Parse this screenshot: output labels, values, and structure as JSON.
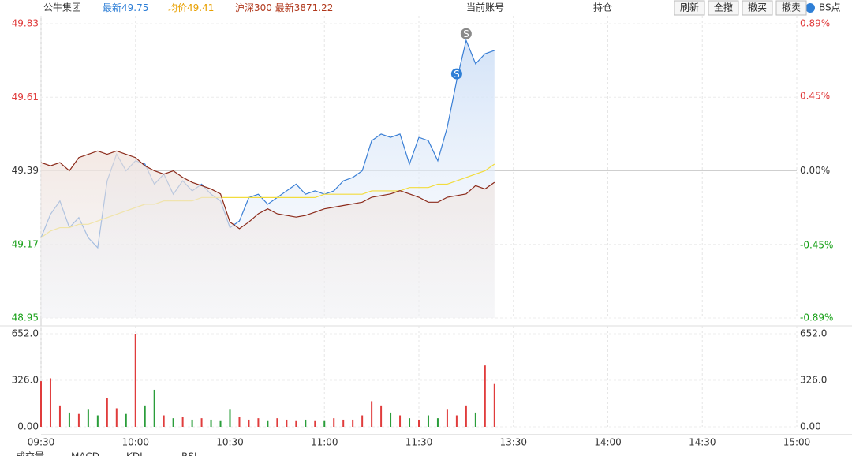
{
  "header": {
    "stock": "公牛集团",
    "last": {
      "label": "最新",
      "value": 49.75
    },
    "avg": {
      "label": "均价",
      "value": 49.41
    },
    "index": {
      "name": "沪深300",
      "label": "最新",
      "value": 3871.22
    },
    "account": "当前账号",
    "position": "持仓",
    "buttons": [
      "刷新",
      "全撤",
      "撤买",
      "撤卖"
    ],
    "bs_toggle": "BS点"
  },
  "tabs": [
    "成交量",
    "MACD",
    "KDJ",
    "RSI"
  ],
  "chart_data": [
    {
      "type": "line",
      "x": [
        0,
        3,
        6,
        9,
        12,
        15,
        18,
        21,
        24,
        27,
        30,
        33,
        36,
        39,
        42,
        45,
        48,
        51,
        54,
        57,
        60,
        63,
        66,
        69,
        72,
        75,
        78,
        81,
        84,
        87,
        90,
        93,
        96,
        99,
        102,
        105,
        108,
        111,
        114,
        117,
        120,
        123,
        126,
        129,
        132,
        135,
        138,
        141,
        144
      ],
      "xlim": [
        0,
        240
      ],
      "xticks": [
        {
          "value": 0,
          "label": "09:30"
        },
        {
          "value": 30,
          "label": "10:00"
        },
        {
          "value": 60,
          "label": "10:30"
        },
        {
          "value": 90,
          "label": "11:00"
        },
        {
          "value": 120,
          "label": "11:30"
        },
        {
          "value": 150,
          "label": "13:30"
        },
        {
          "value": 180,
          "label": "14:00"
        },
        {
          "value": 210,
          "label": "14:30"
        },
        {
          "value": 240,
          "label": "15:00"
        }
      ],
      "ylim": [
        48.95,
        49.83
      ],
      "yticks": [
        49.83,
        49.61,
        49.39,
        49.17,
        48.95
      ],
      "y2lim": [
        -0.89,
        0.89
      ],
      "y2ticks": [
        {
          "value": 0.89,
          "label": "0.89%"
        },
        {
          "value": 0.45,
          "label": "0.45%"
        },
        {
          "value": 0,
          "label": "0.00%"
        },
        {
          "value": -0.45,
          "label": "-0.45%"
        },
        {
          "value": -0.89,
          "label": "-0.89%"
        }
      ],
      "grid": true,
      "series": [
        {
          "color": "#3a7fd5",
          "values": [
            49.19,
            49.26,
            49.3,
            49.22,
            49.25,
            49.19,
            49.16,
            49.36,
            49.44,
            49.39,
            49.42,
            49.41,
            49.35,
            49.38,
            49.32,
            49.36,
            49.33,
            49.35,
            49.32,
            49.3,
            49.22,
            49.24,
            49.31,
            49.32,
            49.29,
            49.31,
            49.33,
            49.35,
            49.32,
            49.33,
            49.32,
            49.33,
            49.36,
            49.37,
            49.39,
            49.48,
            49.5,
            49.49,
            49.5,
            49.41,
            49.49,
            49.48,
            49.42,
            49.52,
            49.66,
            49.78,
            49.71,
            49.74,
            49.75
          ]
        },
        {
          "color": "#f2dc3c",
          "values": [
            49.19,
            49.21,
            49.22,
            49.22,
            49.23,
            49.23,
            49.24,
            49.25,
            49.26,
            49.27,
            49.28,
            49.29,
            49.29,
            49.3,
            49.3,
            49.3,
            49.3,
            49.31,
            49.31,
            49.31,
            49.31,
            49.31,
            49.31,
            49.31,
            49.31,
            49.31,
            49.31,
            49.31,
            49.31,
            49.31,
            49.32,
            49.32,
            49.32,
            49.32,
            49.32,
            49.33,
            49.33,
            49.33,
            49.33,
            49.34,
            49.34,
            49.34,
            49.35,
            49.35,
            49.36,
            49.37,
            49.38,
            49.39,
            49.41
          ]
        },
        {
          "color": "#8b2a1a",
          "axis": "y2",
          "values": [
            0.05,
            0.03,
            0.05,
            0.0,
            0.08,
            0.1,
            0.12,
            0.1,
            0.12,
            0.1,
            0.08,
            0.03,
            0.0,
            -0.02,
            0.0,
            -0.04,
            -0.07,
            -0.09,
            -0.11,
            -0.14,
            -0.31,
            -0.35,
            -0.31,
            -0.26,
            -0.23,
            -0.26,
            -0.27,
            -0.28,
            -0.27,
            -0.25,
            -0.23,
            -0.22,
            -0.21,
            -0.2,
            -0.19,
            -0.16,
            -0.15,
            -0.14,
            -0.12,
            -0.14,
            -0.16,
            -0.19,
            -0.19,
            -0.16,
            -0.15,
            -0.14,
            -0.09,
            -0.11,
            -0.07
          ]
        }
      ],
      "signals": [
        {
          "x": 132,
          "y": 49.68,
          "label": "S",
          "color": "#2f7fd6"
        },
        {
          "x": 135,
          "y": 49.8,
          "label": "S",
          "color": "#8a8a8a"
        }
      ]
    },
    {
      "type": "bar",
      "x": [
        0,
        3,
        6,
        9,
        12,
        15,
        18,
        21,
        24,
        27,
        30,
        33,
        36,
        39,
        42,
        45,
        48,
        51,
        54,
        57,
        60,
        63,
        66,
        69,
        72,
        75,
        78,
        81,
        84,
        87,
        90,
        93,
        96,
        99,
        102,
        105,
        108,
        111,
        114,
        117,
        120,
        123,
        126,
        129,
        132,
        135,
        138,
        141,
        144
      ],
      "values": [
        320,
        340,
        150,
        100,
        90,
        120,
        80,
        200,
        130,
        90,
        652,
        150,
        260,
        80,
        60,
        70,
        50,
        60,
        50,
        40,
        120,
        70,
        50,
        60,
        40,
        60,
        50,
        40,
        50,
        40,
        40,
        60,
        50,
        50,
        80,
        180,
        150,
        100,
        80,
        60,
        50,
        80,
        60,
        120,
        80,
        150,
        100,
        430,
        300
      ],
      "colors": {
        "up": "#e03c3c",
        "down": "#2a9d3a"
      },
      "ylim": [
        0,
        652
      ],
      "yticks": [
        {
          "value": 652,
          "label": "652.0"
        },
        {
          "value": 326,
          "label": "326.0"
        },
        {
          "value": 0,
          "label": "0.00"
        }
      ]
    }
  ]
}
